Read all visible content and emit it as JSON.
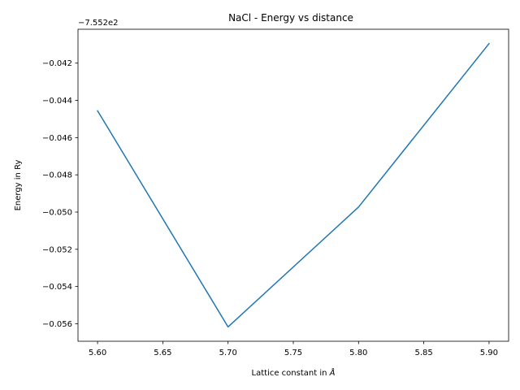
{
  "chart_data": {
    "type": "line",
    "title": "NaCl - Energy vs distance",
    "xlabel_text": "Lattice constant in ",
    "xlabel_unit": "Å",
    "ylabel": "Energy in Ry",
    "offset_label": "−7.552e2",
    "x": [
      5.6,
      5.7,
      5.8,
      5.9
    ],
    "series": [
      {
        "values": [
          -0.04456,
          -0.05617,
          -0.04973,
          -0.04095
        ],
        "color": "#1f77b4"
      }
    ],
    "xlim": [
      5.585,
      5.915
    ],
    "ylim": [
      -0.05694,
      -0.04018
    ],
    "xticks": [
      5.6,
      5.65,
      5.7,
      5.75,
      5.8,
      5.85,
      5.9
    ],
    "xtick_labels": [
      "5.60",
      "5.65",
      "5.70",
      "5.75",
      "5.80",
      "5.85",
      "5.90"
    ],
    "yticks": [
      -0.056,
      -0.054,
      -0.052,
      -0.05,
      -0.048,
      -0.046,
      -0.044,
      -0.042
    ],
    "ytick_labels": [
      "−0.056",
      "−0.054",
      "−0.052",
      "−0.050",
      "−0.048",
      "−0.046",
      "−0.044",
      "−0.042"
    ],
    "grid": false,
    "legend": "none"
  }
}
